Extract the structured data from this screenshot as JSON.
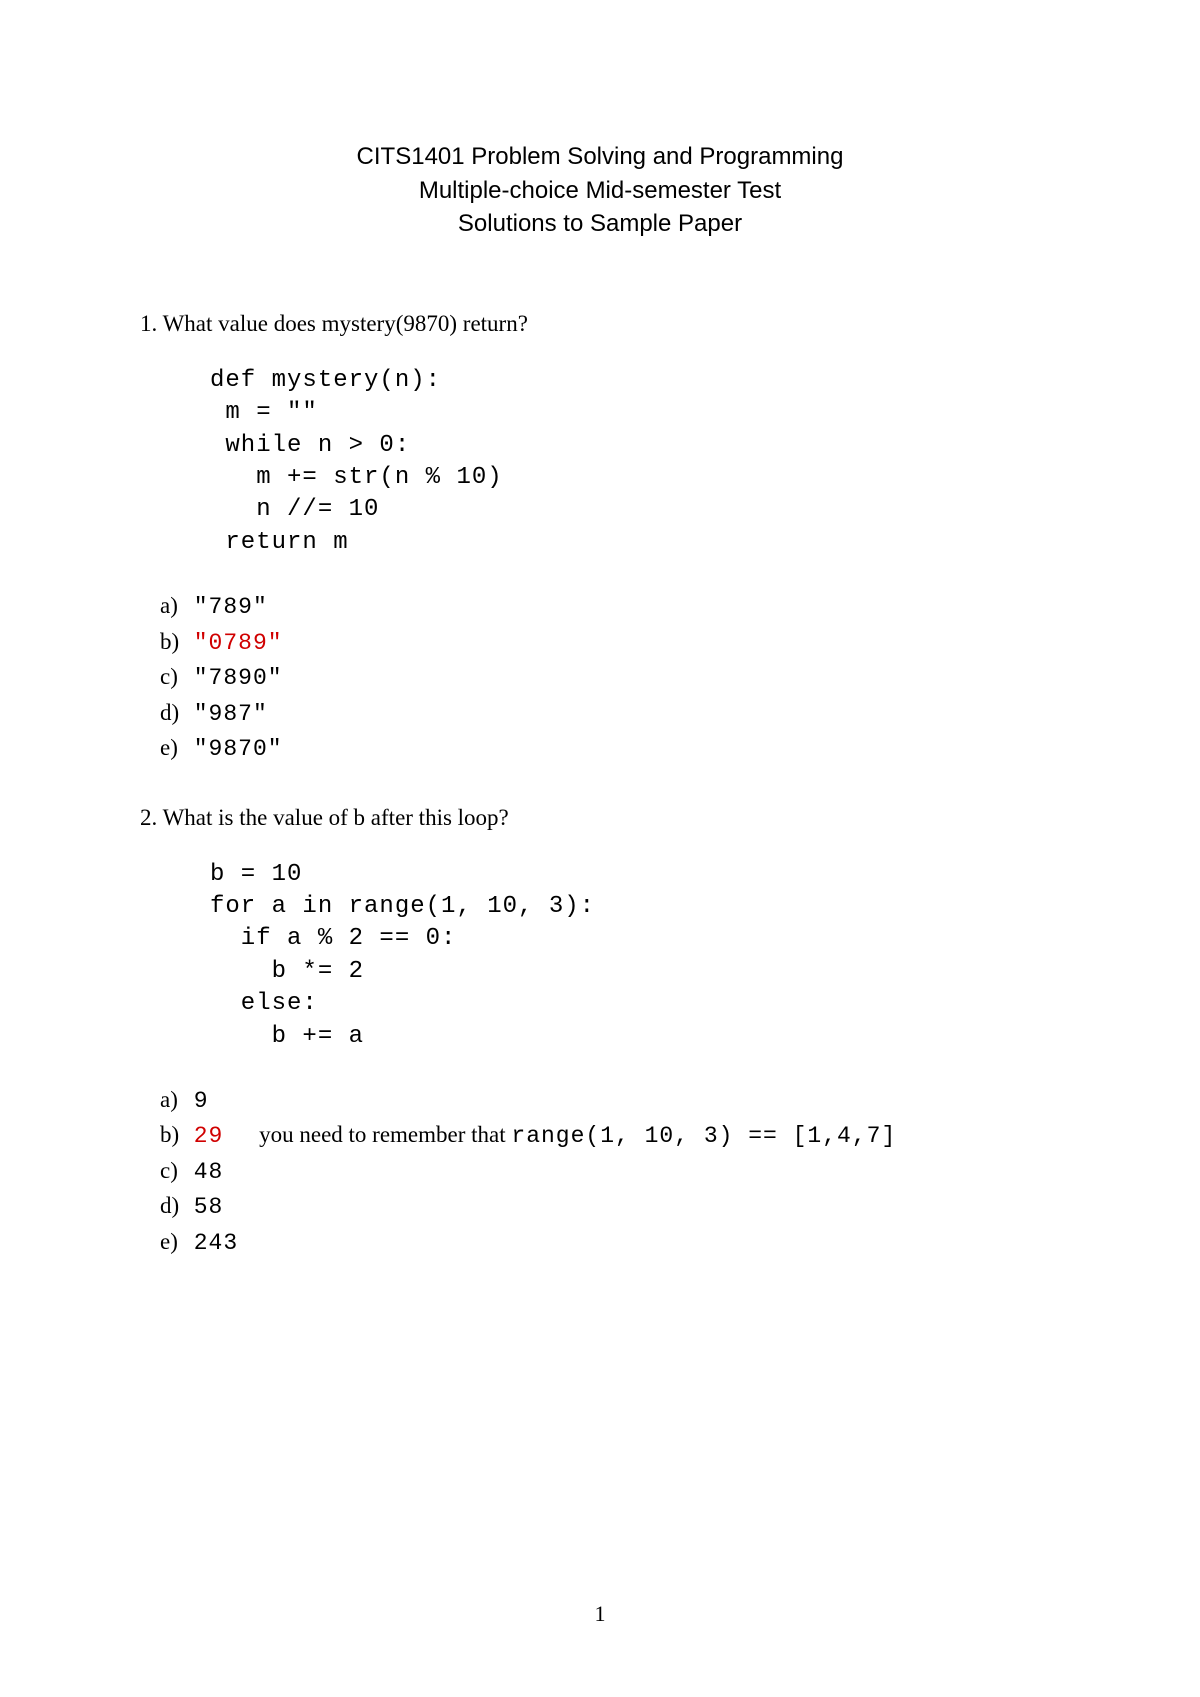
{
  "header": {
    "line1": "CITS1401 Problem Solving and Programming",
    "line2": "Multiple-choice Mid-semester Test",
    "line3": "Solutions to Sample Paper"
  },
  "questions": [
    {
      "number": "1.",
      "text": "What value does mystery(9870) return?",
      "code": "def mystery(n):\n m = \"\"\n while n > 0:\n   m += str(n % 10)\n   n //= 10\n return m",
      "options": [
        {
          "label": "a)",
          "value": "\"789\"",
          "correct": false
        },
        {
          "label": "b)",
          "value": "\"0789\"",
          "correct": true
        },
        {
          "label": "c)",
          "value": "\"7890\"",
          "correct": false
        },
        {
          "label": "d)",
          "value": "\"987\"",
          "correct": false
        },
        {
          "label": "e)",
          "value": "\"9870\"",
          "correct": false
        }
      ]
    },
    {
      "number": "2.",
      "text": "What is the value of b after this loop?",
      "code": "b = 10\nfor a in range(1, 10, 3):\n  if a % 2 == 0:\n    b *= 2\n  else:\n    b += a",
      "options": [
        {
          "label": "a)",
          "value": "9",
          "correct": false
        },
        {
          "label": "b)",
          "value": "29",
          "correct": true,
          "note_prefix": "you need to remember that ",
          "note_code": "range(1, 10, 3) == [1,4,7]"
        },
        {
          "label": "c)",
          "value": "48",
          "correct": false
        },
        {
          "label": "d)",
          "value": "58",
          "correct": false
        },
        {
          "label": "e)",
          "value": "243",
          "correct": false
        }
      ]
    }
  ],
  "pageNumber": "1",
  "colors": {
    "text": "#000000",
    "correct": "#d00000",
    "background": "#ffffff"
  }
}
